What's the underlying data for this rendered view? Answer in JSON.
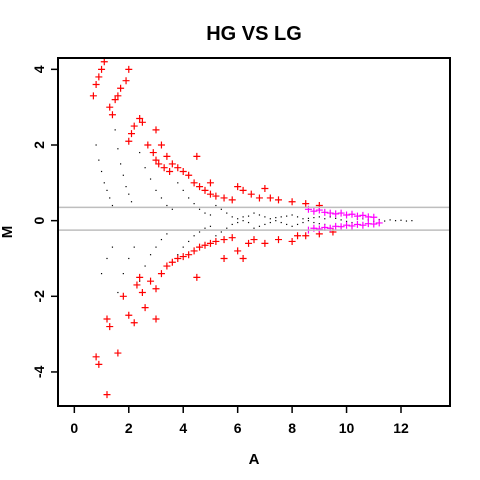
{
  "chart_data": {
    "type": "scatter",
    "title": "HG VS LG",
    "xlabel": "A",
    "ylabel": "M",
    "xlim": [
      -0.6,
      13.8
    ],
    "ylim": [
      -4.9,
      4.3
    ],
    "x_ticks": [
      0,
      2,
      4,
      6,
      8,
      10,
      12
    ],
    "y_ticks": [
      -4,
      -2,
      0,
      2,
      4
    ],
    "x_tick_labels": [
      "0",
      "2",
      "4",
      "6",
      "8",
      "10",
      "12"
    ],
    "y_tick_labels": [
      "-4",
      "-2",
      "0",
      "2",
      "4"
    ],
    "reference_lines_y": [
      0.35,
      -0.25
    ],
    "grid": false,
    "colors": {
      "background_points": "#000000",
      "significant": "#ff0000",
      "highlight": "#ff00ff",
      "reference_line": "#bebebe",
      "axes": "#000000"
    },
    "series": [
      {
        "marker": "dot",
        "color": "#000000",
        "points": [
          [
            0.8,
            2.0
          ],
          [
            0.9,
            1.6
          ],
          [
            1.0,
            1.3
          ],
          [
            1.1,
            1.0
          ],
          [
            1.2,
            0.8
          ],
          [
            1.3,
            0.6
          ],
          [
            1.4,
            0.4
          ],
          [
            1.5,
            2.4
          ],
          [
            1.6,
            1.9
          ],
          [
            1.7,
            1.5
          ],
          [
            1.8,
            1.2
          ],
          [
            1.9,
            0.9
          ],
          [
            2.0,
            0.7
          ],
          [
            2.1,
            0.5
          ],
          [
            1.0,
            -1.4
          ],
          [
            1.2,
            -1.0
          ],
          [
            1.4,
            -0.7
          ],
          [
            1.6,
            -1.9
          ],
          [
            1.8,
            -1.4
          ],
          [
            2.0,
            -1.0
          ],
          [
            2.2,
            -0.7
          ],
          [
            2.4,
            1.8
          ],
          [
            2.6,
            1.4
          ],
          [
            2.8,
            1.1
          ],
          [
            3.0,
            0.8
          ],
          [
            3.2,
            0.6
          ],
          [
            3.4,
            0.4
          ],
          [
            3.6,
            0.3
          ],
          [
            2.4,
            -1.6
          ],
          [
            2.6,
            -1.2
          ],
          [
            2.8,
            -0.9
          ],
          [
            3.0,
            -0.7
          ],
          [
            3.2,
            -0.5
          ],
          [
            3.4,
            -0.35
          ],
          [
            3.8,
            1.0
          ],
          [
            4.0,
            0.8
          ],
          [
            4.2,
            0.6
          ],
          [
            4.4,
            0.45
          ],
          [
            4.6,
            0.3
          ],
          [
            4.8,
            0.2
          ],
          [
            5.0,
            0.15
          ],
          [
            3.8,
            -0.9
          ],
          [
            4.0,
            -0.7
          ],
          [
            4.2,
            -0.55
          ],
          [
            4.4,
            -0.4
          ],
          [
            4.6,
            -0.3
          ],
          [
            4.8,
            -0.2
          ],
          [
            5.0,
            -0.15
          ],
          [
            5.2,
            0.4
          ],
          [
            5.4,
            0.3
          ],
          [
            5.6,
            0.2
          ],
          [
            5.8,
            0.1
          ],
          [
            6.0,
            0.05
          ],
          [
            6.2,
            0.0
          ],
          [
            6.4,
            -0.05
          ],
          [
            5.2,
            -0.4
          ],
          [
            5.4,
            -0.3
          ],
          [
            5.6,
            -0.2
          ],
          [
            5.8,
            -0.1
          ],
          [
            6.0,
            -0.05
          ],
          [
            6.2,
            0.1
          ],
          [
            6.4,
            0.12
          ],
          [
            6.6,
            0.2
          ],
          [
            6.8,
            0.15
          ],
          [
            7.0,
            0.1
          ],
          [
            7.2,
            0.05
          ],
          [
            7.4,
            0.0
          ],
          [
            7.6,
            -0.05
          ],
          [
            7.8,
            -0.1
          ],
          [
            6.6,
            -0.2
          ],
          [
            6.8,
            -0.15
          ],
          [
            7.0,
            -0.1
          ],
          [
            7.2,
            -0.05
          ],
          [
            7.4,
            0.08
          ],
          [
            7.6,
            0.1
          ],
          [
            7.8,
            0.12
          ],
          [
            8.0,
            0.15
          ],
          [
            8.2,
            0.1
          ],
          [
            8.4,
            0.05
          ],
          [
            8.6,
            0.0
          ],
          [
            8.8,
            -0.05
          ],
          [
            9.0,
            -0.08
          ],
          [
            9.2,
            -0.1
          ],
          [
            8.0,
            -0.15
          ],
          [
            8.2,
            -0.1
          ],
          [
            8.4,
            -0.05
          ],
          [
            8.6,
            0.06
          ],
          [
            8.8,
            0.08
          ],
          [
            9.0,
            0.1
          ],
          [
            9.2,
            0.05
          ],
          [
            9.4,
            0.1
          ],
          [
            9.6,
            0.06
          ],
          [
            9.8,
            0.02
          ],
          [
            10.0,
            -0.02
          ],
          [
            10.2,
            -0.05
          ],
          [
            10.4,
            0.04
          ],
          [
            10.6,
            0.05
          ],
          [
            10.8,
            0.02
          ],
          [
            11.0,
            -0.02
          ],
          [
            11.2,
            0.03
          ],
          [
            11.4,
            -0.01
          ],
          [
            11.6,
            0.02
          ],
          [
            11.8,
            0.0
          ],
          [
            12.0,
            0.01
          ],
          [
            12.2,
            -0.01
          ],
          [
            12.4,
            0.0
          ]
        ]
      },
      {
        "marker": "plus",
        "color": "#ff0000",
        "points": [
          [
            0.7,
            3.3
          ],
          [
            0.8,
            3.6
          ],
          [
            0.9,
            3.8
          ],
          [
            1.0,
            4.0
          ],
          [
            1.1,
            4.2
          ],
          [
            1.3,
            3.0
          ],
          [
            1.4,
            2.8
          ],
          [
            1.5,
            3.2
          ],
          [
            1.6,
            3.3
          ],
          [
            1.7,
            3.5
          ],
          [
            1.9,
            3.7
          ],
          [
            2.0,
            4.0
          ],
          [
            2.0,
            2.1
          ],
          [
            2.1,
            2.3
          ],
          [
            2.2,
            2.5
          ],
          [
            2.4,
            2.7
          ],
          [
            2.5,
            2.6
          ],
          [
            2.7,
            2.0
          ],
          [
            2.9,
            1.8
          ],
          [
            3.0,
            1.6
          ],
          [
            3.1,
            1.5
          ],
          [
            3.3,
            1.4
          ],
          [
            3.5,
            1.3
          ],
          [
            3.0,
            2.4
          ],
          [
            3.2,
            2.0
          ],
          [
            3.4,
            1.7
          ],
          [
            3.6,
            1.5
          ],
          [
            3.8,
            1.4
          ],
          [
            4.0,
            1.3
          ],
          [
            4.2,
            1.2
          ],
          [
            4.4,
            1.0
          ],
          [
            4.6,
            0.9
          ],
          [
            4.8,
            0.8
          ],
          [
            5.0,
            0.7
          ],
          [
            5.2,
            0.65
          ],
          [
            5.5,
            0.6
          ],
          [
            5.8,
            0.55
          ],
          [
            6.0,
            0.9
          ],
          [
            6.2,
            0.8
          ],
          [
            6.5,
            0.7
          ],
          [
            6.8,
            0.6
          ],
          [
            7.0,
            0.85
          ],
          [
            7.2,
            0.6
          ],
          [
            7.5,
            0.55
          ],
          [
            8.0,
            0.5
          ],
          [
            8.5,
            0.45
          ],
          [
            9.0,
            0.4
          ],
          [
            4.5,
            1.7
          ],
          [
            5.0,
            1.0
          ],
          [
            0.8,
            -3.6
          ],
          [
            0.9,
            -3.8
          ],
          [
            1.2,
            -4.6
          ],
          [
            1.2,
            -2.6
          ],
          [
            1.3,
            -2.8
          ],
          [
            1.6,
            -3.5
          ],
          [
            1.8,
            -2.0
          ],
          [
            2.0,
            -2.5
          ],
          [
            2.2,
            -2.7
          ],
          [
            2.3,
            -1.7
          ],
          [
            2.4,
            -1.5
          ],
          [
            2.5,
            -1.9
          ],
          [
            2.6,
            -2.3
          ],
          [
            2.8,
            -1.6
          ],
          [
            3.0,
            -1.8
          ],
          [
            3.0,
            -2.6
          ],
          [
            3.2,
            -1.4
          ],
          [
            3.4,
            -1.2
          ],
          [
            3.6,
            -1.1
          ],
          [
            3.8,
            -1.0
          ],
          [
            4.0,
            -0.95
          ],
          [
            4.2,
            -0.9
          ],
          [
            4.4,
            -0.8
          ],
          [
            4.6,
            -0.7
          ],
          [
            4.8,
            -0.65
          ],
          [
            5.0,
            -0.6
          ],
          [
            5.2,
            -0.55
          ],
          [
            5.5,
            -0.5
          ],
          [
            5.8,
            -0.45
          ],
          [
            6.0,
            -0.8
          ],
          [
            6.2,
            -1.0
          ],
          [
            6.4,
            -0.6
          ],
          [
            6.6,
            -0.5
          ],
          [
            7.0,
            -0.6
          ],
          [
            7.5,
            -0.5
          ],
          [
            8.0,
            -0.55
          ],
          [
            8.2,
            -0.4
          ],
          [
            8.5,
            -0.4
          ],
          [
            9.0,
            -0.35
          ],
          [
            9.5,
            -0.3
          ],
          [
            4.5,
            -1.5
          ],
          [
            5.5,
            -1.0
          ]
        ]
      },
      {
        "marker": "plus",
        "color": "#ff00ff",
        "points": [
          [
            8.6,
            0.3
          ],
          [
            8.8,
            0.25
          ],
          [
            9.0,
            0.28
          ],
          [
            9.2,
            0.22
          ],
          [
            9.4,
            0.2
          ],
          [
            9.6,
            0.18
          ],
          [
            9.8,
            0.2
          ],
          [
            10.0,
            0.15
          ],
          [
            10.2,
            0.17
          ],
          [
            10.4,
            0.12
          ],
          [
            10.6,
            0.14
          ],
          [
            10.8,
            0.1
          ],
          [
            11.0,
            0.09
          ],
          [
            8.6,
            -0.25
          ],
          [
            8.8,
            -0.2
          ],
          [
            9.0,
            -0.22
          ],
          [
            9.2,
            -0.18
          ],
          [
            9.4,
            -0.2
          ],
          [
            9.6,
            -0.15
          ],
          [
            9.8,
            -0.16
          ],
          [
            10.0,
            -0.12
          ],
          [
            10.2,
            -0.14
          ],
          [
            10.4,
            -0.1
          ],
          [
            10.6,
            -0.12
          ],
          [
            10.8,
            -0.08
          ],
          [
            11.0,
            -0.09
          ],
          [
            11.2,
            -0.06
          ]
        ]
      }
    ]
  }
}
